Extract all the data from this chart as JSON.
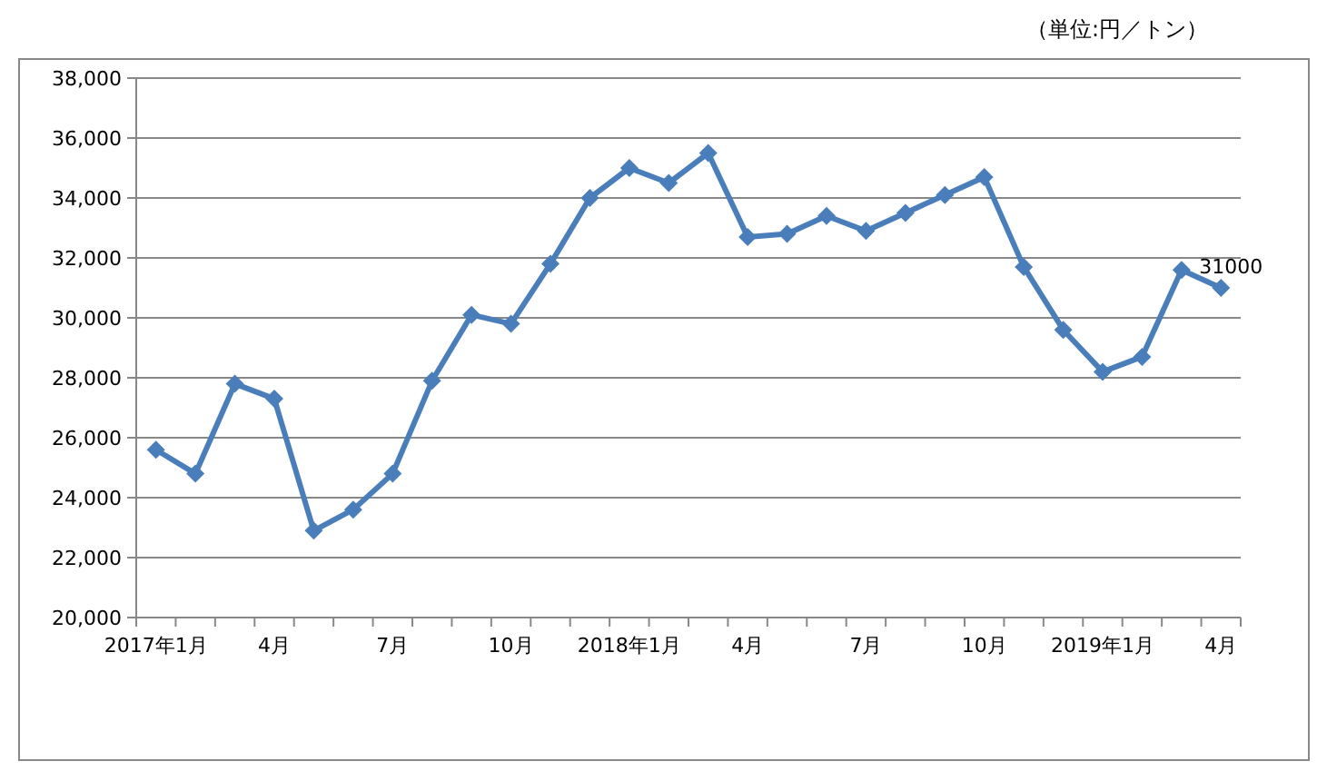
{
  "chart_data": {
    "type": "line",
    "annotations": [
      "（単位:円／トン）"
    ],
    "categories": [
      "2017年1月",
      null,
      null,
      "4月",
      null,
      null,
      "7月",
      null,
      null,
      "10月",
      null,
      null,
      "2018年1月",
      null,
      null,
      "4月",
      null,
      null,
      "7月",
      null,
      null,
      "10月",
      null,
      null,
      "2019年1月",
      null,
      null,
      "4月"
    ],
    "series": [
      {
        "color": "#4a7ebb",
        "values": [
          25600,
          24800,
          27800,
          27300,
          22900,
          23600,
          24800,
          27900,
          30100,
          29800,
          31800,
          34000,
          35000,
          34500,
          35500,
          32700,
          32800,
          33400,
          32900,
          33500,
          34100,
          34700,
          31700,
          29600,
          28200,
          28700,
          31600,
          31000
        ],
        "value_labels": [
          null,
          null,
          null,
          null,
          null,
          null,
          null,
          null,
          null,
          null,
          null,
          null,
          null,
          null,
          null,
          null,
          null,
          null,
          null,
          null,
          null,
          null,
          null,
          null,
          null,
          null,
          null,
          "31000"
        ]
      }
    ],
    "ylim": [
      20000,
      38000
    ],
    "yticks": [
      {
        "value": 20000,
        "label": "20,000"
      },
      {
        "value": 22000,
        "label": "22,000"
      },
      {
        "value": 24000,
        "label": "24,000"
      },
      {
        "value": 26000,
        "label": "26,000"
      },
      {
        "value": 28000,
        "label": "28,000"
      },
      {
        "value": 30000,
        "label": "30,000"
      },
      {
        "value": 32000,
        "label": "32,000"
      },
      {
        "value": 34000,
        "label": "34,000"
      },
      {
        "value": 36000,
        "label": "36,000"
      },
      {
        "value": 38000,
        "label": "38,000"
      }
    ],
    "grid": "y",
    "marker": "diamond",
    "line_style": "solid"
  }
}
